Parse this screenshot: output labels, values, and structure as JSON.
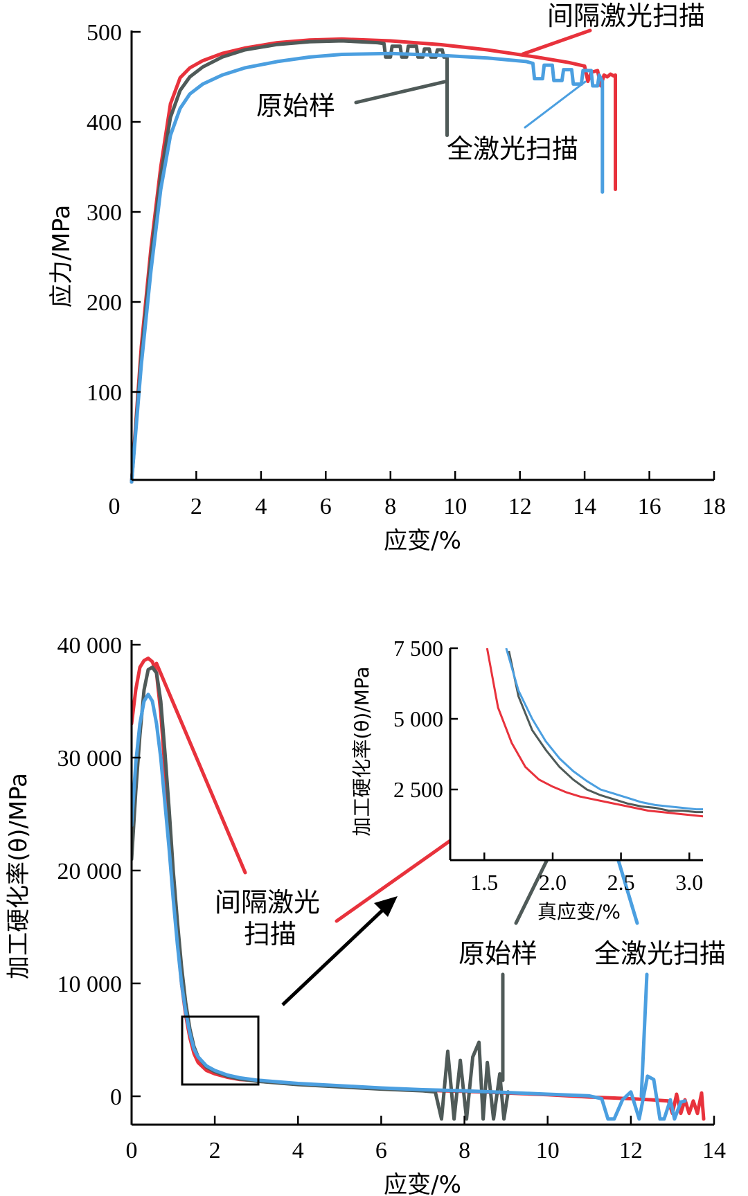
{
  "colors": {
    "interval": "#e8323c",
    "original": "#4f5a58",
    "full": "#4b9fe0",
    "axis": "#000000"
  },
  "chart_data": [
    {
      "type": "line",
      "title": "",
      "xlabel": "应变/%",
      "ylabel": "应力/MPa",
      "xlim": [
        0,
        18
      ],
      "ylim": [
        0,
        500
      ],
      "xticks": [
        "0",
        "2",
        "4",
        "6",
        "8",
        "10",
        "12",
        "14",
        "16",
        "18"
      ],
      "yticks": [
        "100",
        "200",
        "300",
        "400",
        "500"
      ],
      "annotations": [
        "间隔激光扫描",
        "原始样",
        "全激光扫描"
      ],
      "series": [
        {
          "name": "间隔激光扫描",
          "color_key": "interval",
          "x": [
            0,
            0.3,
            0.6,
            0.9,
            1.2,
            1.5,
            1.8,
            2.2,
            2.8,
            3.5,
            4.5,
            5.5,
            6.5,
            8,
            9.5,
            11,
            12.5,
            13.5,
            14.0,
            14.1,
            14.2,
            14.4,
            14.5,
            14.6,
            14.7,
            14.8,
            14.9,
            14.95,
            14.95
          ],
          "y": [
            0,
            150,
            260,
            350,
            420,
            449,
            460,
            468,
            476,
            482,
            488,
            491,
            492,
            490,
            486,
            480,
            472,
            466,
            462,
            445,
            455,
            457,
            440,
            452,
            450,
            453,
            451,
            452,
            325
          ]
        },
        {
          "name": "原始样",
          "color_key": "original",
          "x": [
            0,
            0.3,
            0.6,
            0.9,
            1.2,
            1.5,
            1.8,
            2.2,
            2.8,
            3.5,
            4.5,
            5.5,
            6.5,
            7.6,
            7.8,
            7.85,
            8.0,
            8.05,
            8.3,
            8.35,
            8.5,
            8.55,
            8.8,
            8.85,
            9.0,
            9.05,
            9.2,
            9.25,
            9.4,
            9.45,
            9.6,
            9.65,
            9.75,
            9.75
          ],
          "y": [
            0,
            140,
            250,
            340,
            405,
            435,
            450,
            461,
            472,
            480,
            486,
            489,
            490,
            488,
            487,
            472,
            472,
            484,
            484,
            472,
            472,
            484,
            484,
            472,
            472,
            481,
            481,
            472,
            472,
            480,
            480,
            472,
            472,
            385
          ]
        },
        {
          "name": "全激光扫描",
          "color_key": "full",
          "x": [
            0,
            0.3,
            0.6,
            0.9,
            1.2,
            1.5,
            1.8,
            2.2,
            2.8,
            3.5,
            4.5,
            5.5,
            6.5,
            8,
            9.5,
            11,
            12.2,
            12.4,
            12.45,
            12.7,
            12.75,
            13.0,
            13.05,
            13.3,
            13.35,
            13.6,
            13.65,
            13.9,
            13.95,
            14.2,
            14.25,
            14.4,
            14.45,
            14.55,
            14.55
          ],
          "y": [
            0,
            130,
            235,
            325,
            385,
            415,
            431,
            442,
            452,
            460,
            467,
            472,
            475,
            476,
            474,
            471,
            467,
            465,
            448,
            448,
            463,
            463,
            446,
            446,
            458,
            458,
            442,
            442,
            457,
            457,
            440,
            440,
            452,
            445,
            322
          ]
        }
      ]
    },
    {
      "type": "line",
      "title": "",
      "xlabel": "应变/%",
      "ylabel": "加工硬化率(θ)/MPa",
      "xlim": [
        0,
        14
      ],
      "ylim": [
        -2500,
        40000
      ],
      "xticks": [
        "0",
        "2",
        "4",
        "6",
        "8",
        "10",
        "12",
        "14"
      ],
      "yticks": [
        "0",
        "10 000",
        "20 000",
        "30 000",
        "40 000"
      ],
      "annotations": [
        "间隔激光",
        "扫描",
        "原始样",
        "全激光扫描"
      ],
      "series": [
        {
          "name": "间隔激光扫描",
          "color_key": "interval",
          "x": [
            0,
            0.1,
            0.2,
            0.3,
            0.4,
            0.5,
            0.6,
            0.7,
            0.8,
            0.9,
            1.0,
            1.1,
            1.2,
            1.3,
            1.4,
            1.5,
            1.6,
            1.8,
            2.0,
            2.3,
            2.6,
            3.0,
            4,
            5,
            6,
            7,
            8,
            9,
            10,
            11,
            12,
            12.5,
            12.9,
            13.0,
            13.1,
            13.2,
            13.3,
            13.4,
            13.5,
            13.6,
            13.7,
            13.75
          ],
          "y": [
            33000,
            36000,
            38000,
            38600,
            38800,
            38500,
            37500,
            34000,
            29000,
            24000,
            18500,
            14000,
            10000,
            7200,
            5200,
            3800,
            3000,
            2300,
            2000,
            1700,
            1500,
            1400,
            1100,
            900,
            700,
            550,
            450,
            300,
            150,
            -50,
            -200,
            -300,
            -400,
            -1500,
            200,
            -1500,
            -300,
            -1500,
            -400,
            -1500,
            300,
            -2000
          ]
        },
        {
          "name": "原始样",
          "color_key": "original",
          "x": [
            0,
            0.1,
            0.2,
            0.3,
            0.4,
            0.5,
            0.6,
            0.7,
            0.8,
            0.9,
            1.0,
            1.1,
            1.2,
            1.3,
            1.4,
            1.5,
            1.6,
            1.8,
            2.0,
            2.3,
            2.6,
            3.0,
            4,
            5,
            6,
            7,
            7.3,
            7.45,
            7.6,
            7.75,
            7.9,
            8.05,
            8.2,
            8.35,
            8.45,
            8.55,
            8.7,
            8.85,
            8.95,
            9.05
          ],
          "y": [
            21000,
            27000,
            32000,
            36000,
            37800,
            38000,
            37500,
            35000,
            30500,
            25500,
            20000,
            15500,
            11500,
            8300,
            6000,
            4400,
            3500,
            2600,
            2200,
            1800,
            1550,
            1350,
            1050,
            850,
            650,
            500,
            400,
            -2000,
            4000,
            -2000,
            3200,
            -2000,
            3500,
            4800,
            -2000,
            3000,
            -2000,
            2000,
            -2000,
            400
          ]
        },
        {
          "name": "全激光扫描",
          "color_key": "full",
          "x": [
            0,
            0.1,
            0.2,
            0.3,
            0.4,
            0.5,
            0.6,
            0.7,
            0.8,
            0.9,
            1.0,
            1.1,
            1.2,
            1.3,
            1.4,
            1.5,
            1.6,
            1.8,
            2.0,
            2.3,
            2.6,
            3.0,
            4,
            5,
            6,
            7,
            8,
            9,
            10,
            11,
            11.3,
            11.45,
            11.6,
            11.8,
            12.0,
            12.2,
            12.4,
            12.55,
            12.7,
            12.8,
            12.95,
            13.05,
            13.2,
            13.3
          ],
          "y": [
            24000,
            29500,
            33000,
            35000,
            35600,
            35000,
            33000,
            30000,
            26000,
            22000,
            17500,
            13500,
            10000,
            7500,
            5600,
            4200,
            3500,
            2700,
            2300,
            1900,
            1650,
            1450,
            1150,
            950,
            750,
            600,
            500,
            350,
            200,
            50,
            -200,
            -2000,
            -2000,
            -300,
            400,
            -2000,
            1800,
            1500,
            -2000,
            -2000,
            -300,
            -2000,
            -500,
            -400
          ]
        }
      ],
      "inset": {
        "xlabel": "真应变/%",
        "ylabel": "加工硬化率(θ)/MPa",
        "xlim": [
          1.25,
          3.1
        ],
        "ylim": [
          0,
          7500
        ],
        "xticks": [
          "1.5",
          "2.0",
          "2.5",
          "3.0"
        ],
        "yticks": [
          "2 500",
          "5 000",
          "7 500"
        ],
        "series": [
          {
            "name": "间隔激光扫描",
            "color_key": "interval",
            "x": [
              1.52,
              1.6,
              1.7,
              1.8,
              1.9,
              2.0,
              2.1,
              2.2,
              2.3,
              2.4,
              2.5,
              2.6,
              2.7,
              2.8,
              2.9,
              3.0,
              3.1
            ],
            "y": [
              7500,
              5400,
              4150,
              3300,
              2850,
              2600,
              2400,
              2250,
              2150,
              2050,
              1950,
              1850,
              1750,
              1700,
              1650,
              1600,
              1550
            ]
          },
          {
            "name": "原始样",
            "color_key": "original",
            "x": [
              1.68,
              1.75,
              1.85,
              1.95,
              2.05,
              2.15,
              2.25,
              2.35,
              2.45,
              2.55,
              2.65,
              2.75,
              2.85,
              2.95,
              3.05,
              3.1
            ],
            "y": [
              7400,
              5800,
              4600,
              3900,
              3300,
              2850,
              2500,
              2300,
              2150,
              2000,
              1900,
              1850,
              1750,
              1750,
              1700,
              1700
            ]
          },
          {
            "name": "全激光扫描",
            "color_key": "full",
            "x": [
              1.66,
              1.75,
              1.85,
              1.95,
              2.05,
              2.15,
              2.25,
              2.35,
              2.45,
              2.55,
              2.65,
              2.75,
              2.85,
              2.95,
              3.05,
              3.1
            ],
            "y": [
              7500,
              6000,
              5000,
              4200,
              3600,
              3150,
              2800,
              2500,
              2350,
              2200,
              2050,
              1950,
              1900,
              1850,
              1800,
              1800
            ]
          }
        ]
      }
    }
  ]
}
